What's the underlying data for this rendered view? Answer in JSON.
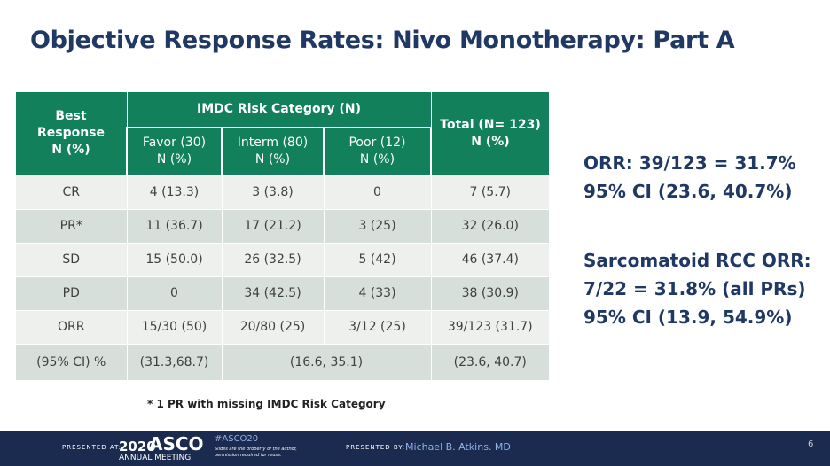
{
  "title": "Objective Response Rates: Nivo Monotherapy: Part A",
  "table": {
    "header": {
      "best_response": [
        "Best",
        "Response",
        "N (%)"
      ],
      "imdc": "IMDC Risk Category (N)",
      "total": [
        "Total (N= 123)",
        "N (%)"
      ],
      "sub": [
        [
          "Favor (30)",
          "N  (%)"
        ],
        [
          "Interm (80)",
          "N (%)"
        ],
        [
          "Poor (12)",
          "N (%)"
        ]
      ]
    },
    "rows": [
      [
        "CR",
        "4 (13.3)",
        "3 (3.8)",
        "0",
        "7 (5.7)"
      ],
      [
        "PR*",
        "11 (36.7)",
        "17 (21.2)",
        "3 (25)",
        "32 (26.0)"
      ],
      [
        "SD",
        "15 (50.0)",
        "26 (32.5)",
        "5 (42)",
        "46 (37.4)"
      ],
      [
        "PD",
        "0",
        "34 (42.5)",
        "4 (33)",
        "38 (30.9)"
      ],
      [
        "ORR",
        "15/30 (50)",
        "20/80 (25)",
        "3/12 (25)",
        "39/123 (31.7)"
      ]
    ],
    "ci_row": [
      "(95% CI) %",
      "(31.3,68.7)",
      "(16.6, 35.1)",
      "(23.6, 40.7)"
    ]
  },
  "footnote": "* 1 PR with missing IMDC Risk Category",
  "summary": {
    "orr": [
      "ORR: 39/123 = 31.7%",
      "95% CI (23.6, 40.7%)"
    ],
    "sarcomatoid": [
      "Sarcomatoid RCC ORR:",
      "7/22 = 31.8% (all PRs)",
      "95% CI (13.9,  54.9%)"
    ]
  },
  "footer": {
    "presented_at": "PRESENTED AT:",
    "year": "2020",
    "asco": "ASCO",
    "meeting": "ANNUAL MEETING",
    "hashtag": "#ASCO20",
    "notice": [
      "Slides are the property of the author,",
      "permission required for reuse."
    ],
    "presented_by": "PRESENTED BY:",
    "presenter": "Michael B. Atkins. MD",
    "page": "6"
  }
}
